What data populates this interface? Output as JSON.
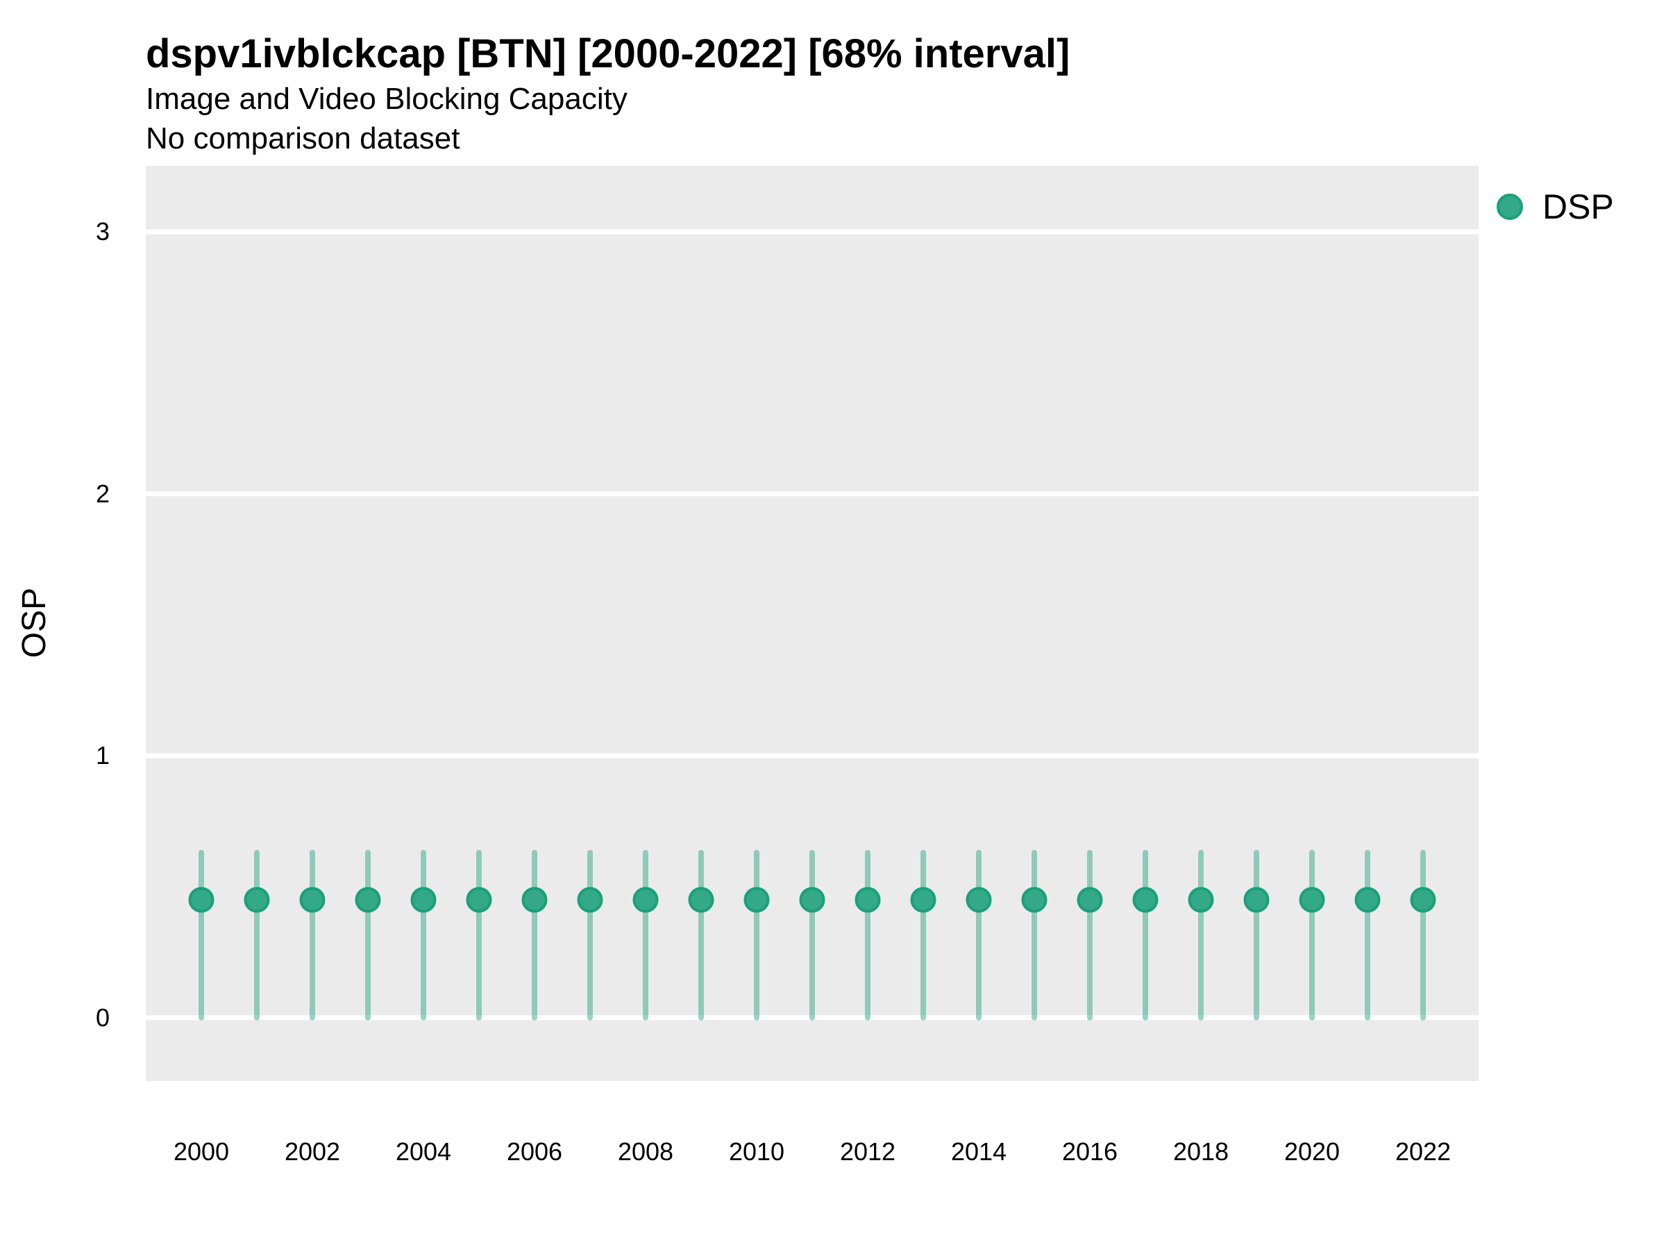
{
  "chart_data": {
    "type": "pointrange",
    "title": "dspv1ivblckcap [BTN] [2000-2022] [68% interval]",
    "subtitle": "Image and Video Blocking Capacity",
    "note": "No comparison dataset",
    "xlabel": "",
    "ylabel": "OSP",
    "interval": "68%",
    "x": [
      2000,
      2001,
      2002,
      2003,
      2004,
      2005,
      2006,
      2007,
      2008,
      2009,
      2010,
      2011,
      2012,
      2013,
      2014,
      2015,
      2016,
      2017,
      2018,
      2019,
      2020,
      2021,
      2022
    ],
    "series": [
      {
        "name": "DSP",
        "values": [
          0.45,
          0.45,
          0.45,
          0.45,
          0.45,
          0.45,
          0.45,
          0.45,
          0.45,
          0.45,
          0.45,
          0.45,
          0.45,
          0.45,
          0.45,
          0.45,
          0.45,
          0.45,
          0.45,
          0.45,
          0.45,
          0.45,
          0.45
        ],
        "low": [
          0,
          0,
          0,
          0,
          0,
          0,
          0,
          0,
          0,
          0,
          0,
          0,
          0,
          0,
          0,
          0,
          0,
          0,
          0,
          0,
          0,
          0,
          0
        ],
        "high": [
          0.63,
          0.63,
          0.63,
          0.63,
          0.63,
          0.63,
          0.63,
          0.63,
          0.63,
          0.63,
          0.63,
          0.63,
          0.63,
          0.63,
          0.63,
          0.63,
          0.63,
          0.63,
          0.63,
          0.63,
          0.63,
          0.63,
          0.63
        ]
      }
    ],
    "xticks": [
      2000,
      2002,
      2004,
      2006,
      2008,
      2010,
      2012,
      2014,
      2016,
      2018,
      2020,
      2022
    ],
    "yticks": [
      0,
      1,
      2,
      3
    ],
    "xlim": [
      1999,
      2023
    ],
    "ylim": [
      -0.242,
      3.252
    ],
    "grid": "horizontal-major-only",
    "legend_position": "right-top",
    "colors": {
      "panel": "#ebebeb",
      "grid": "#ffffff",
      "point_fill": "#34a987",
      "point_stroke": "#1aa07a",
      "range_bar": "rgba(52,169,135,0.5)",
      "text": "#000000"
    }
  }
}
